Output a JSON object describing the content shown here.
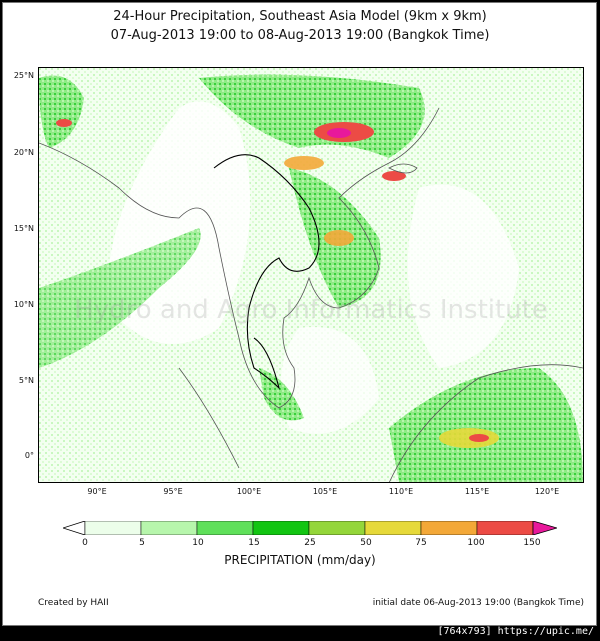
{
  "title_line1": "24-Hour Precipitation, Southeast Asia Model (9km x 9km)",
  "title_line2": "07-Aug-2013 19:00 to 08-Aug-2013 19:00 (Bangkok Time)",
  "lat_labels": [
    "25°N",
    "20°N",
    "15°N",
    "10°N",
    "5°N",
    "0°"
  ],
  "lon_labels": [
    "90°E",
    "95°E",
    "100°E",
    "105°E",
    "110°E",
    "115°E",
    "120°E"
  ],
  "watermark_text": "Hydro and Agro Informatics Institute",
  "colorbar": {
    "ticks": [
      "0",
      "5",
      "10",
      "15",
      "25",
      "50",
      "75",
      "100",
      "150"
    ],
    "colors": [
      "#ecfeea",
      "#b7f6ac",
      "#5fe05a",
      "#12c512",
      "#94d63a",
      "#e6d93a",
      "#f3a838",
      "#ec4b45",
      "#e8199b"
    ],
    "title": "PRECIPITATION (mm/day)"
  },
  "footer": {
    "credit": "Created by HAII",
    "initial_date": "initial date 06-Aug-2013 19:00 (Bangkok Time)"
  },
  "image_host_tag": "[764x793] https://upic.me/"
}
